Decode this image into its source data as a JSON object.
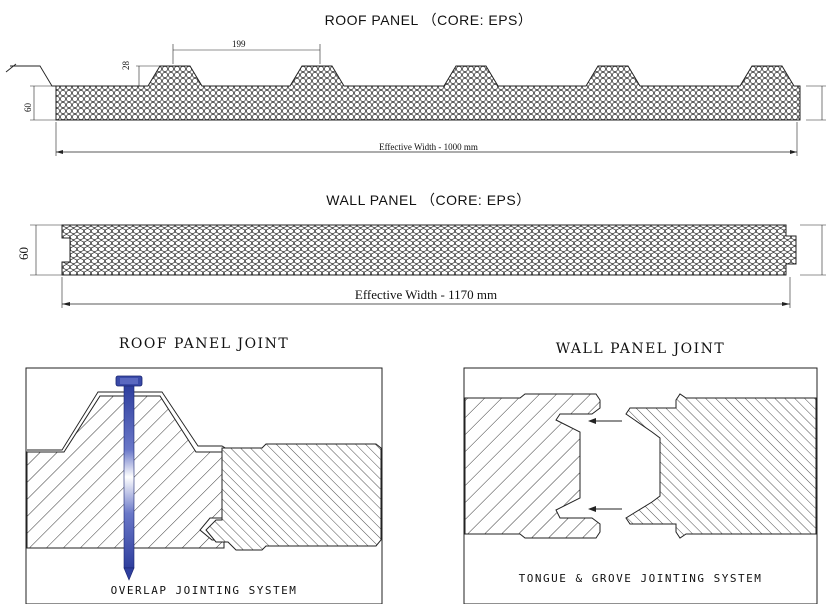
{
  "roof_panel": {
    "title": "ROOF PANEL （CORE: EPS）",
    "dim_rib_spacing": "199",
    "dim_rib_height": "28",
    "dim_thickness": "60",
    "effective_width": "Effective Width - 1000 mm"
  },
  "wall_panel": {
    "title": "WALL PANEL （CORE: EPS）",
    "dim_thickness": "60",
    "effective_width": "Effective Width - 1170 mm"
  },
  "roof_joint": {
    "title": "ROOF PANEL JOINT",
    "caption": "OVERLAP JOINTING SYSTEM"
  },
  "wall_joint": {
    "title": "WALL PANEL JOINT",
    "caption": "TONGUE & GROVE JOINTING SYSTEM"
  },
  "colors": {
    "line": "#222222",
    "screw": "#3a4aa8"
  }
}
